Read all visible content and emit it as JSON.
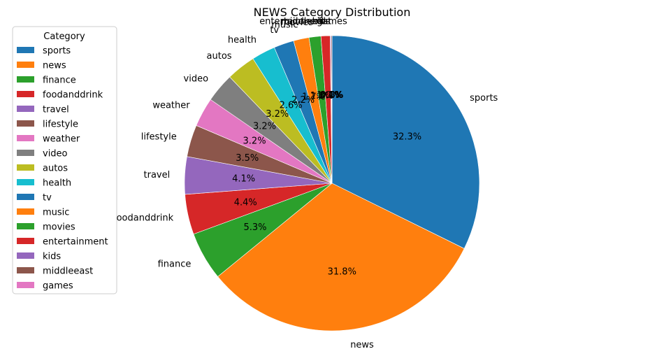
{
  "chart_data": {
    "type": "pie",
    "title": "NEWS Category Distribution",
    "legend": {
      "title": "Category",
      "placement": "left"
    },
    "start_angle_deg": 90,
    "direction": "clockwise",
    "slices": [
      {
        "label": "sports",
        "value": 32.3,
        "pct_label": "32.3%",
        "color": "#1f77b4"
      },
      {
        "label": "news",
        "value": 31.8,
        "pct_label": "31.8%",
        "color": "#ff7f0e"
      },
      {
        "label": "finance",
        "value": 5.3,
        "pct_label": "5.3%",
        "color": "#2ca02c"
      },
      {
        "label": "foodanddrink",
        "value": 4.4,
        "pct_label": "4.4%",
        "color": "#d62728"
      },
      {
        "label": "travel",
        "value": 4.1,
        "pct_label": "4.1%",
        "color": "#9467bd"
      },
      {
        "label": "lifestyle",
        "value": 3.5,
        "pct_label": "3.5%",
        "color": "#8c564b"
      },
      {
        "label": "weather",
        "value": 3.2,
        "pct_label": "3.2%",
        "color": "#e377c2"
      },
      {
        "label": "video",
        "value": 3.2,
        "pct_label": "3.2%",
        "color": "#7f7f7f"
      },
      {
        "label": "autos",
        "value": 3.2,
        "pct_label": "3.2%",
        "color": "#bcbd22"
      },
      {
        "label": "health",
        "value": 2.6,
        "pct_label": "2.6%",
        "color": "#17becf"
      },
      {
        "label": "tv",
        "value": 2.2,
        "pct_label": "2.2%",
        "color": "#1f77b4"
      },
      {
        "label": "music",
        "value": 1.7,
        "pct_label": "1.7%",
        "color": "#ff7f0e"
      },
      {
        "label": "movies",
        "value": 1.3,
        "pct_label": "1.3%",
        "color": "#2ca02c"
      },
      {
        "label": "entertainment",
        "value": 1.0,
        "pct_label": "1.0%",
        "color": "#d62728"
      },
      {
        "label": "kids",
        "value": 0.1,
        "pct_label": "0.1%",
        "color": "#9467bd"
      },
      {
        "label": "middleeast",
        "value": 0.1,
        "pct_label": "0.1%",
        "color": "#8c564b"
      },
      {
        "label": "games",
        "value": 0.0,
        "pct_label": "0.0%",
        "color": "#e377c2"
      }
    ]
  }
}
